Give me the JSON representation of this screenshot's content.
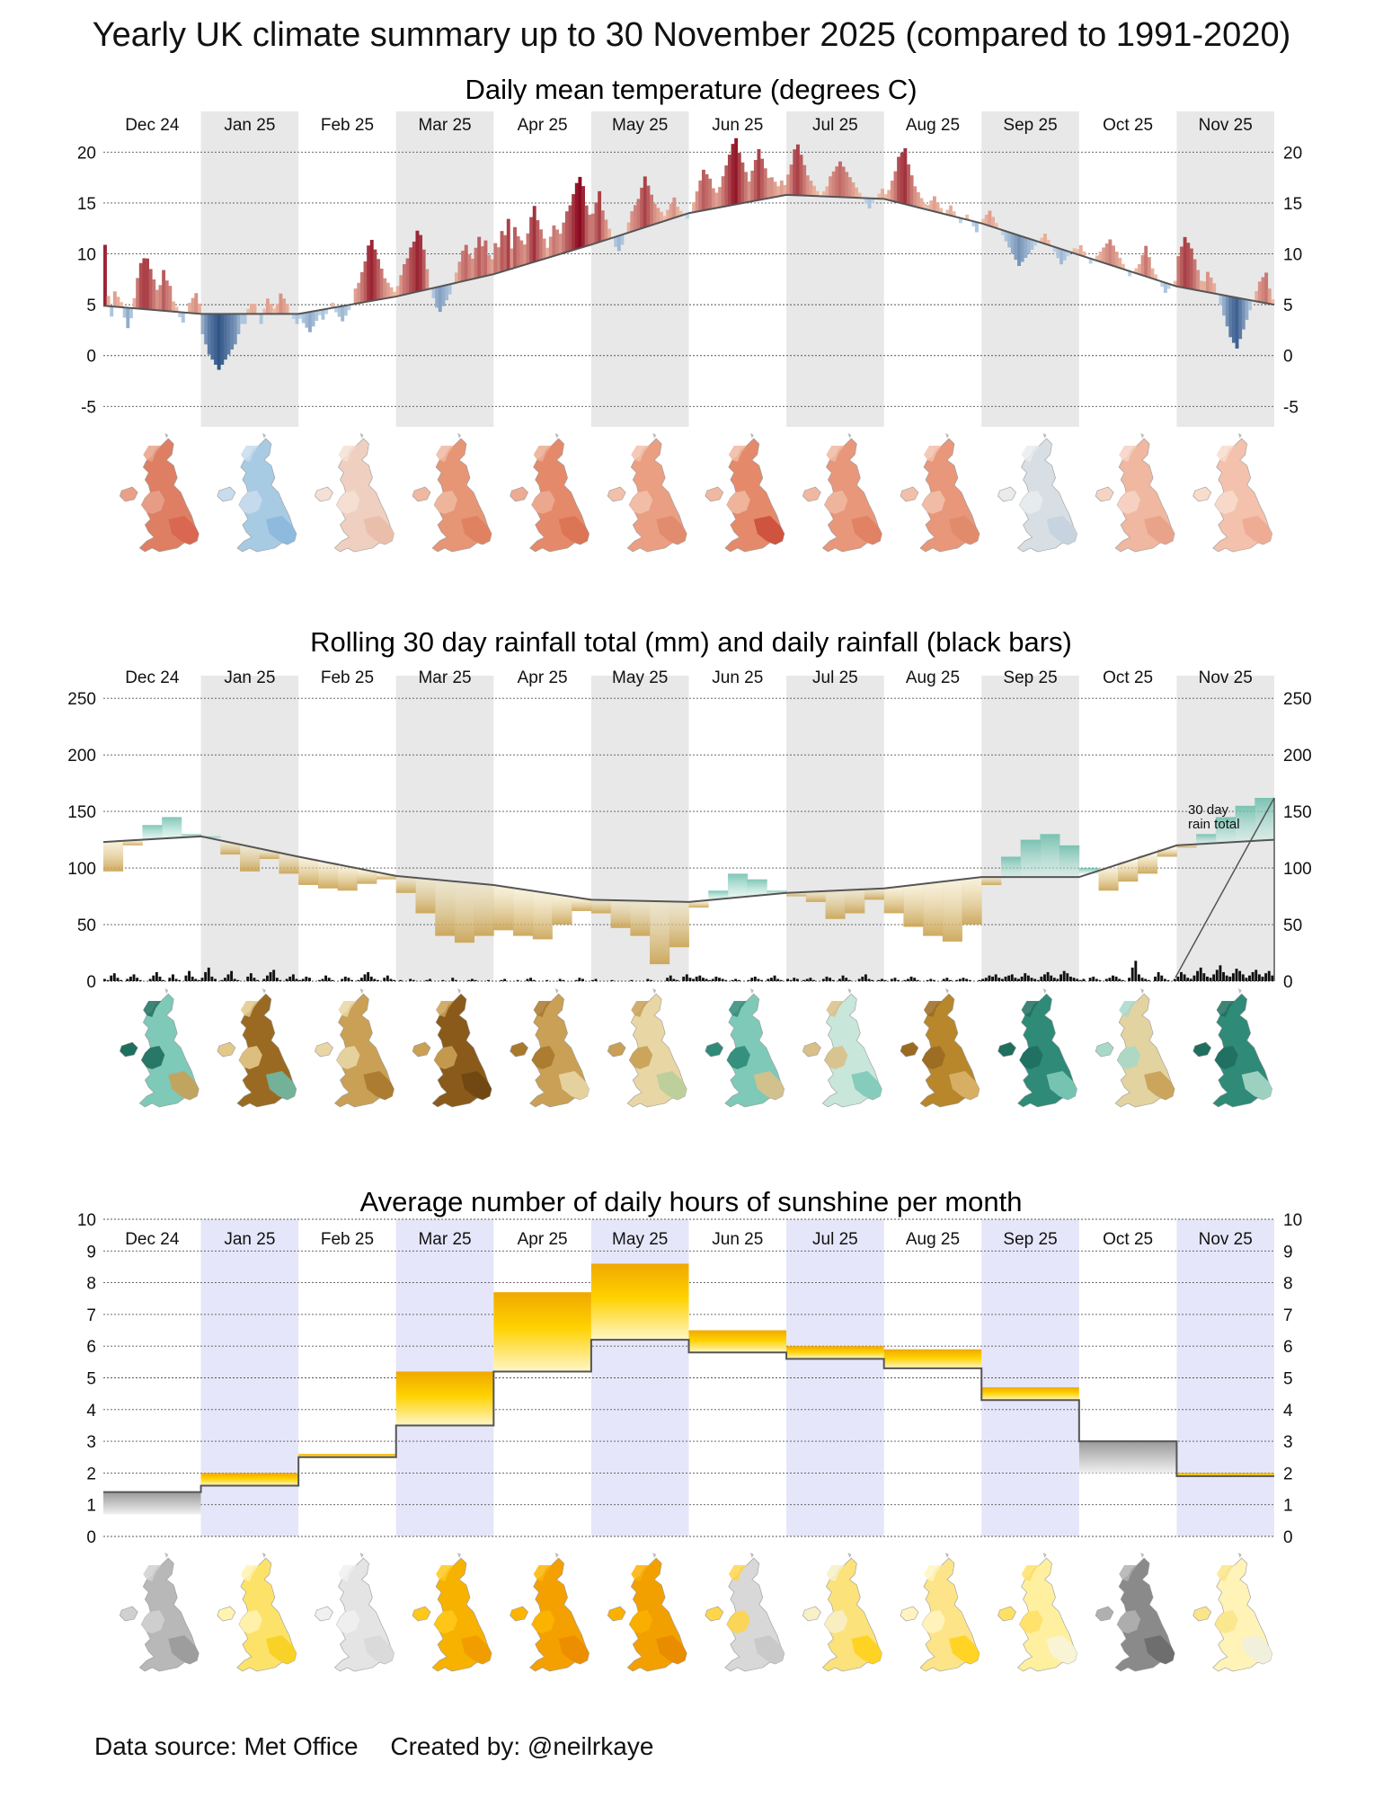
{
  "title": "Yearly UK climate summary up to 30 November 2025 (compared to 1991-2020)",
  "footer": {
    "source": "Data source: Met Office",
    "credit": "Created by: @neilrkaye"
  },
  "months": [
    "Dec 24",
    "Jan 25",
    "Feb 25",
    "Mar 25",
    "Apr 25",
    "May 25",
    "Jun 25",
    "Jul 25",
    "Aug 25",
    "Sep 25",
    "Oct 25",
    "Nov 25"
  ],
  "colors": {
    "warm": "#c0392b",
    "warm_dark": "#8b0a1f",
    "cold": "#2166ac",
    "cold_dark": "#08306b",
    "wet": "#1a8a7a",
    "dry": "#b8862b",
    "sun": "#f2a900",
    "band_grey": "#e8e8e8",
    "band_blue": "#e6e6fa"
  },
  "chart_data": [
    {
      "id": "temperature",
      "type": "bar",
      "title": "Daily mean temperature (degrees C)",
      "ylim": [
        -7,
        24
      ],
      "yticks": [
        20,
        15,
        10,
        5,
        0,
        -5
      ],
      "ytick_labels": [
        "20",
        "15",
        "10",
        "5",
        "0",
        "-5"
      ],
      "normal_by_month": [
        4.9,
        4.1,
        4.1,
        5.8,
        8.0,
        10.9,
        14.0,
        15.8,
        15.4,
        13.0,
        9.9,
        6.8,
        5.0
      ],
      "daily_anomaly_by_month": [
        [
          6,
          1,
          -1,
          1.5,
          1,
          0.5,
          -1,
          -2,
          -1,
          1,
          3,
          4.5,
          5,
          5,
          4,
          3,
          2,
          2.5,
          4,
          3,
          2.5,
          1,
          0.5,
          -0.5,
          -1,
          0,
          1,
          1.5,
          2,
          1
        ],
        [
          -2,
          -3,
          -4,
          -4.5,
          -5,
          -5.5,
          -5,
          -4.5,
          -4,
          -3.5,
          -3,
          -2,
          -1,
          -1,
          0.5,
          1,
          1,
          0,
          -1,
          0.5,
          1.5,
          1,
          0.5,
          1,
          2,
          1.5,
          1,
          0,
          -0.5,
          -1
        ],
        [
          -0.5,
          -1,
          -1.5,
          -2,
          -1.5,
          -1,
          -0.5,
          -1,
          -0.5,
          0,
          0.5,
          -0.5,
          -1,
          -1.5,
          -1,
          -0.5,
          0,
          1.5,
          2,
          3,
          4,
          5.5,
          6,
          5,
          4,
          3,
          2,
          1.5,
          1,
          0.5
        ],
        [
          1,
          2,
          3,
          3.5,
          4.5,
          5,
          6,
          5.5,
          4,
          2,
          0,
          -1,
          -2,
          -2.5,
          -2,
          -1.5,
          -1,
          0,
          1,
          2,
          3,
          3.5,
          2.5,
          2,
          3,
          4,
          3,
          3.5,
          2,
          1.5
        ],
        [
          3,
          2.5,
          4,
          3.5,
          5,
          2,
          4,
          3,
          2.5,
          2,
          3,
          4.5,
          5.5,
          4,
          3,
          2,
          1,
          2,
          3,
          2.5,
          2,
          3,
          4,
          4.5,
          5.5,
          6.5,
          7,
          6,
          4,
          3
        ],
        [
          3,
          4,
          5,
          3,
          2,
          1,
          0,
          -1,
          -1.5,
          -1,
          0,
          1,
          2,
          2.5,
          3,
          4,
          5,
          4,
          3,
          2,
          1.5,
          1,
          0.5,
          1,
          1.5,
          2,
          1,
          0.5,
          0,
          -0.5
        ],
        [
          0,
          1,
          2,
          3,
          4,
          3.5,
          3,
          2,
          1.5,
          2,
          3,
          4,
          5,
          6,
          6.5,
          5,
          4,
          3,
          2,
          3,
          4,
          5,
          4,
          3,
          2,
          2,
          1.5,
          1,
          1.5,
          1
        ],
        [
          2,
          3,
          4.5,
          5,
          4,
          3,
          2,
          1.5,
          1,
          0.5,
          0,
          0.5,
          1,
          2,
          2.5,
          3,
          3.5,
          3,
          2.5,
          2,
          1.5,
          1,
          0.5,
          0,
          -0.5,
          -1,
          -0.5,
          0,
          0.5,
          1
        ],
        [
          0.5,
          1,
          2,
          3,
          4.5,
          5,
          5.5,
          4,
          3,
          2,
          1.5,
          1,
          0.5,
          0.5,
          1,
          1.5,
          1,
          0.5,
          0,
          0.5,
          1,
          0.5,
          0,
          -0.5,
          0,
          0.5,
          0,
          -0.5,
          -1,
          0
        ],
        [
          0.5,
          1,
          1.5,
          1,
          0.5,
          0,
          -0.5,
          -1,
          -1.5,
          -2,
          -2.5,
          -3,
          -2.5,
          -2,
          -1.5,
          -1,
          -0.5,
          0,
          0.5,
          1,
          0.5,
          0,
          -0.5,
          -1,
          -1.5,
          -1,
          -0.5,
          0,
          0.5,
          0.5
        ],
        [
          1,
          0.5,
          0,
          -0.5,
          0,
          0.5,
          1,
          1.5,
          2,
          2.5,
          2,
          1.5,
          1,
          0.5,
          0,
          -0.5,
          0,
          0.5,
          1,
          2,
          3,
          2,
          1,
          0.5,
          0,
          -0.5,
          -1,
          -0.5,
          0,
          0.5
        ],
        [
          3,
          4,
          5,
          4.5,
          4,
          3,
          2,
          1,
          1,
          2,
          1.5,
          1,
          0,
          -1,
          -2,
          -3,
          -4,
          -4.5,
          -5,
          -4,
          -3,
          -2,
          -1,
          0,
          1,
          2,
          2.5,
          3,
          1.5,
          0.5
        ]
      ]
    },
    {
      "id": "rainfall",
      "type": "area",
      "title": "Rolling 30 day rainfall total (mm) and daily rainfall (black bars)",
      "ylim": [
        0,
        270
      ],
      "yticks": [
        250,
        200,
        150,
        100,
        50,
        0
      ],
      "ytick_labels": [
        "250",
        "200",
        "150",
        "100",
        "50",
        "0"
      ],
      "annotation": "30 day rain total",
      "normal_by_month": [
        123,
        128,
        110,
        93,
        85,
        72,
        70,
        78,
        82,
        92,
        92,
        120,
        125,
        125
      ],
      "rolling_by_month": [
        [
          97,
          120,
          138,
          145,
          130
        ],
        [
          128,
          112,
          97,
          108,
          95
        ],
        [
          85,
          82,
          80,
          86,
          90
        ],
        [
          78,
          60,
          40,
          34,
          40
        ],
        [
          45,
          40,
          37,
          50,
          62
        ],
        [
          60,
          47,
          40,
          15,
          30
        ],
        [
          65,
          80,
          95,
          90,
          80
        ],
        [
          75,
          70,
          55,
          60,
          72
        ],
        [
          60,
          48,
          40,
          35,
          50
        ],
        [
          85,
          110,
          125,
          130,
          120
        ],
        [
          100,
          80,
          88,
          95,
          110
        ],
        [
          118,
          130,
          145,
          155,
          162
        ]
      ],
      "daily_rain_by_month": [
        [
          2,
          1,
          5,
          7,
          3,
          1,
          0,
          2,
          4,
          6,
          3,
          1,
          0,
          0,
          2,
          5,
          8,
          4,
          1,
          0,
          3,
          6,
          2,
          1,
          0,
          5,
          9,
          4,
          2,
          1
        ],
        [
          3,
          8,
          12,
          4,
          2,
          0,
          1,
          3,
          6,
          9,
          2,
          1,
          0,
          0,
          4,
          7,
          3,
          1,
          0,
          2,
          5,
          8,
          10,
          3,
          1,
          0,
          2,
          4,
          6,
          2
        ],
        [
          1,
          2,
          4,
          3,
          0,
          0,
          1,
          2,
          5,
          3,
          1,
          0,
          0,
          2,
          4,
          3,
          1,
          0,
          1,
          3,
          6,
          8,
          4,
          2,
          1,
          0,
          3,
          5,
          2,
          1
        ],
        [
          0,
          1,
          0,
          0,
          2,
          1,
          0,
          0,
          0,
          1,
          2,
          0,
          0,
          0,
          1,
          0,
          0,
          3,
          1,
          0,
          0,
          0,
          1,
          2,
          1,
          0,
          0,
          0,
          1,
          0
        ],
        [
          0,
          0,
          1,
          2,
          0,
          0,
          0,
          1,
          0,
          0,
          2,
          3,
          1,
          0,
          0,
          0,
          1,
          0,
          0,
          0,
          2,
          1,
          0,
          0,
          0,
          1,
          3,
          2,
          0,
          0
        ],
        [
          1,
          2,
          0,
          0,
          0,
          0,
          1,
          0,
          0,
          0,
          0,
          0,
          1,
          0,
          0,
          0,
          0,
          2,
          1,
          0,
          0,
          0,
          0,
          3,
          5,
          2,
          1,
          0,
          4,
          6
        ],
        [
          3,
          2,
          4,
          5,
          3,
          2,
          1,
          2,
          4,
          3,
          2,
          1,
          0,
          1,
          2,
          1,
          0,
          0,
          1,
          3,
          4,
          2,
          1,
          0,
          2,
          3,
          5,
          2,
          1,
          0
        ],
        [
          2,
          1,
          3,
          2,
          0,
          1,
          2,
          3,
          1,
          0,
          0,
          2,
          4,
          3,
          1,
          0,
          2,
          5,
          3,
          1,
          0,
          0,
          2,
          4,
          6,
          2,
          1,
          0,
          1,
          2
        ],
        [
          1,
          0,
          2,
          3,
          1,
          0,
          1,
          2,
          4,
          3,
          1,
          0,
          0,
          1,
          2,
          1,
          0,
          0,
          2,
          3,
          1,
          0,
          1,
          2,
          3,
          2,
          1,
          0,
          0,
          1
        ],
        [
          2,
          3,
          5,
          4,
          6,
          3,
          2,
          4,
          5,
          6,
          3,
          2,
          4,
          7,
          5,
          3,
          2,
          1,
          4,
          6,
          8,
          5,
          3,
          2,
          6,
          9,
          7,
          4,
          3,
          2
        ],
        [
          1,
          2,
          0,
          3,
          4,
          2,
          1,
          0,
          2,
          3,
          5,
          4,
          2,
          1,
          0,
          3,
          12,
          18,
          6,
          3,
          2,
          1,
          0,
          4,
          8,
          5,
          2,
          1,
          0,
          2
        ],
        [
          4,
          8,
          6,
          3,
          2,
          5,
          9,
          12,
          7,
          4,
          3,
          6,
          10,
          14,
          8,
          5,
          4,
          7,
          11,
          9,
          6,
          3,
          5,
          8,
          10,
          6,
          4,
          7,
          9,
          5
        ]
      ]
    },
    {
      "id": "sunshine",
      "type": "bar",
      "title": "Average number of daily hours of sunshine per month",
      "ylim": [
        0,
        10
      ],
      "yticks": [
        10,
        9,
        8,
        7,
        6,
        5,
        4,
        3,
        2,
        1,
        0
      ],
      "ytick_labels": [
        "10",
        "9",
        "8",
        "7",
        "6",
        "5",
        "4",
        "3",
        "2",
        "1",
        "0"
      ],
      "actual": [
        0.7,
        2.0,
        2.6,
        5.2,
        7.7,
        8.6,
        6.5,
        6.0,
        5.9,
        4.7,
        2.0,
        2.0
      ],
      "normal": [
        1.4,
        1.6,
        2.5,
        3.5,
        5.2,
        6.2,
        5.8,
        5.6,
        5.3,
        4.3,
        3.0,
        1.9
      ]
    }
  ]
}
